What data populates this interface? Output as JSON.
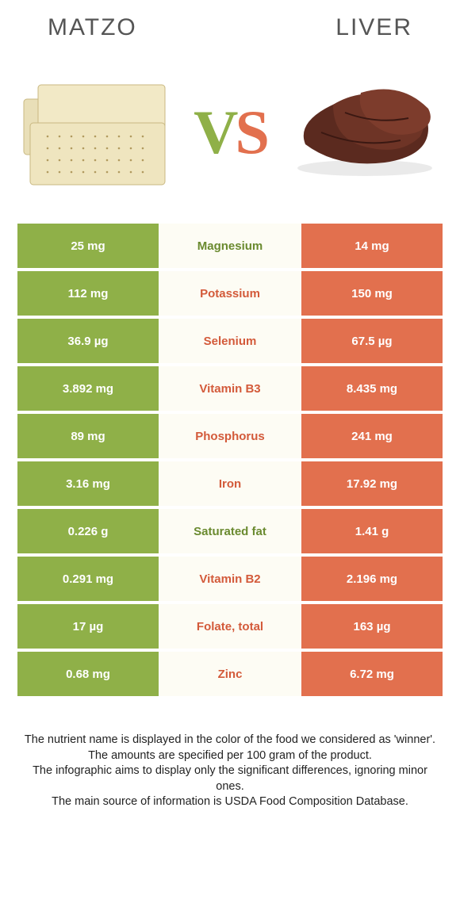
{
  "colors": {
    "left_bg": "#8fb048",
    "right_bg": "#e2704e",
    "mid_bg": "#fdfcf4",
    "left_text": "#6a8a2f",
    "right_text": "#d35a3a",
    "vs_left": "#8fb048",
    "vs_right": "#e2704e"
  },
  "header": {
    "left": "MATZO",
    "right": "LIVER"
  },
  "vs": {
    "v": "V",
    "s": "S"
  },
  "rows": [
    {
      "left": "25 mg",
      "mid": "Magnesium",
      "right": "14 mg",
      "winner": "left"
    },
    {
      "left": "112 mg",
      "mid": "Potassium",
      "right": "150 mg",
      "winner": "right"
    },
    {
      "left": "36.9 µg",
      "mid": "Selenium",
      "right": "67.5 µg",
      "winner": "right"
    },
    {
      "left": "3.892 mg",
      "mid": "Vitamin B3",
      "right": "8.435 mg",
      "winner": "right"
    },
    {
      "left": "89 mg",
      "mid": "Phosphorus",
      "right": "241 mg",
      "winner": "right"
    },
    {
      "left": "3.16 mg",
      "mid": "Iron",
      "right": "17.92 mg",
      "winner": "right"
    },
    {
      "left": "0.226 g",
      "mid": "Saturated fat",
      "right": "1.41 g",
      "winner": "left"
    },
    {
      "left": "0.291 mg",
      "mid": "Vitamin B2",
      "right": "2.196 mg",
      "winner": "right"
    },
    {
      "left": "17 µg",
      "mid": "Folate, total",
      "right": "163 µg",
      "winner": "right"
    },
    {
      "left": "0.68 mg",
      "mid": "Zinc",
      "right": "6.72 mg",
      "winner": "right"
    }
  ],
  "footer": {
    "l1": "The nutrient name is displayed in the color of the food we considered as 'winner'.",
    "l2": "The amounts are specified per 100 gram of the product.",
    "l3": "The infographic aims to display only the significant differences, ignoring minor ones.",
    "l4": "The main source of information is USDA Food Composition Database."
  }
}
